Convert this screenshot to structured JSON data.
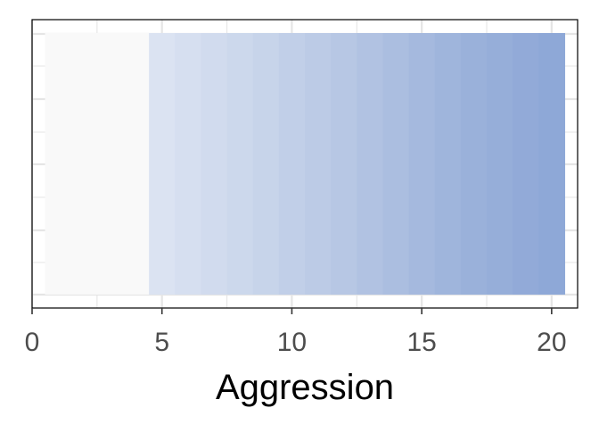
{
  "chart_data": {
    "type": "heatmap",
    "title": "",
    "xlabel": "Aggression",
    "ylabel": "",
    "xlim": [
      0,
      21
    ],
    "x_ticks": [
      0,
      5,
      10,
      15,
      20
    ],
    "x_tick_labels": [
      "0",
      "5",
      "10",
      "15",
      "20"
    ],
    "grid": true,
    "legend": "none",
    "cells": [
      {
        "x_start": 0.5,
        "x_end": 4.5,
        "color": "#f9f9f9"
      },
      {
        "x_start": 4.5,
        "x_end": 5.5,
        "color": "#dbe3f2"
      },
      {
        "x_start": 5.5,
        "x_end": 6.5,
        "color": "#d6dff0"
      },
      {
        "x_start": 6.5,
        "x_end": 7.5,
        "color": "#d1dbee"
      },
      {
        "x_start": 7.5,
        "x_end": 8.5,
        "color": "#ccd8ec"
      },
      {
        "x_start": 8.5,
        "x_end": 9.5,
        "color": "#c7d4ea"
      },
      {
        "x_start": 9.5,
        "x_end": 10.5,
        "color": "#c1cfe8"
      },
      {
        "x_start": 10.5,
        "x_end": 11.5,
        "color": "#bccbe6"
      },
      {
        "x_start": 11.5,
        "x_end": 12.5,
        "color": "#b7c7e4"
      },
      {
        "x_start": 12.5,
        "x_end": 13.5,
        "color": "#b1c2e2"
      },
      {
        "x_start": 13.5,
        "x_end": 14.5,
        "color": "#abbee0"
      },
      {
        "x_start": 14.5,
        "x_end": 15.5,
        "color": "#a5b9de"
      },
      {
        "x_start": 15.5,
        "x_end": 16.5,
        "color": "#9fb5dc"
      },
      {
        "x_start": 16.5,
        "x_end": 17.5,
        "color": "#9ab1da"
      },
      {
        "x_start": 17.5,
        "x_end": 18.5,
        "color": "#96aed9"
      },
      {
        "x_start": 18.5,
        "x_end": 19.5,
        "color": "#92aad8"
      },
      {
        "x_start": 19.5,
        "x_end": 20.5,
        "color": "#8ea8d7"
      }
    ],
    "colors": {
      "panel_border": "#000000",
      "grid": "#e5e5e5",
      "tick": "#333333",
      "tick_label": "#4d4d4d",
      "axis_title": "#000000"
    }
  }
}
